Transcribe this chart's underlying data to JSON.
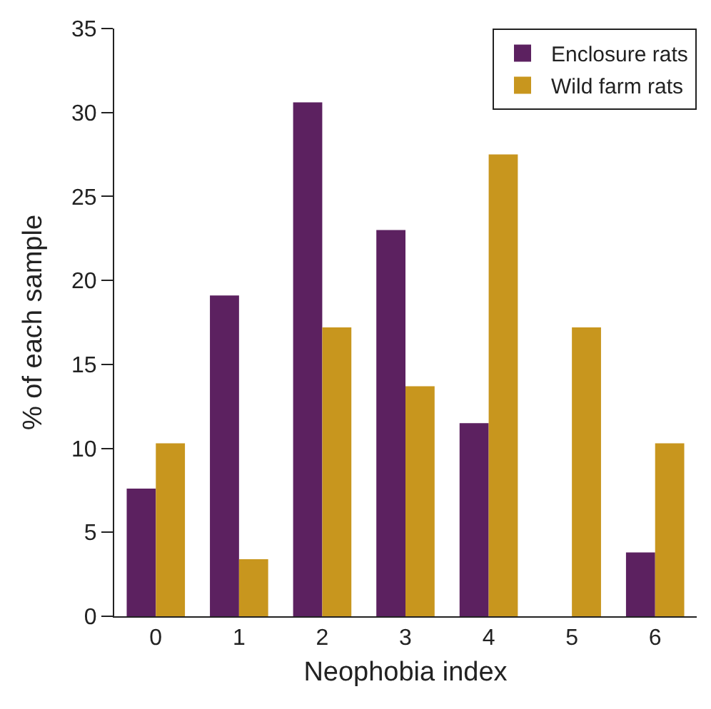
{
  "chart_data": {
    "type": "bar",
    "xlabel": "Neophobia index",
    "ylabel": "% of each sample",
    "categories": [
      "0",
      "1",
      "2",
      "3",
      "4",
      "5",
      "6"
    ],
    "series": [
      {
        "name": "Enclosure rats",
        "color": "#5c2160",
        "values": [
          7.6,
          19.1,
          30.6,
          23.0,
          11.5,
          0,
          3.8
        ]
      },
      {
        "name": "Wild farm rats",
        "color": "#c8961e",
        "values": [
          10.3,
          3.4,
          17.2,
          13.7,
          27.5,
          17.2,
          10.3
        ]
      }
    ],
    "ylim": [
      0,
      35
    ],
    "yticks": [
      0,
      5,
      10,
      15,
      20,
      25,
      30,
      35
    ],
    "legend": "top right"
  }
}
